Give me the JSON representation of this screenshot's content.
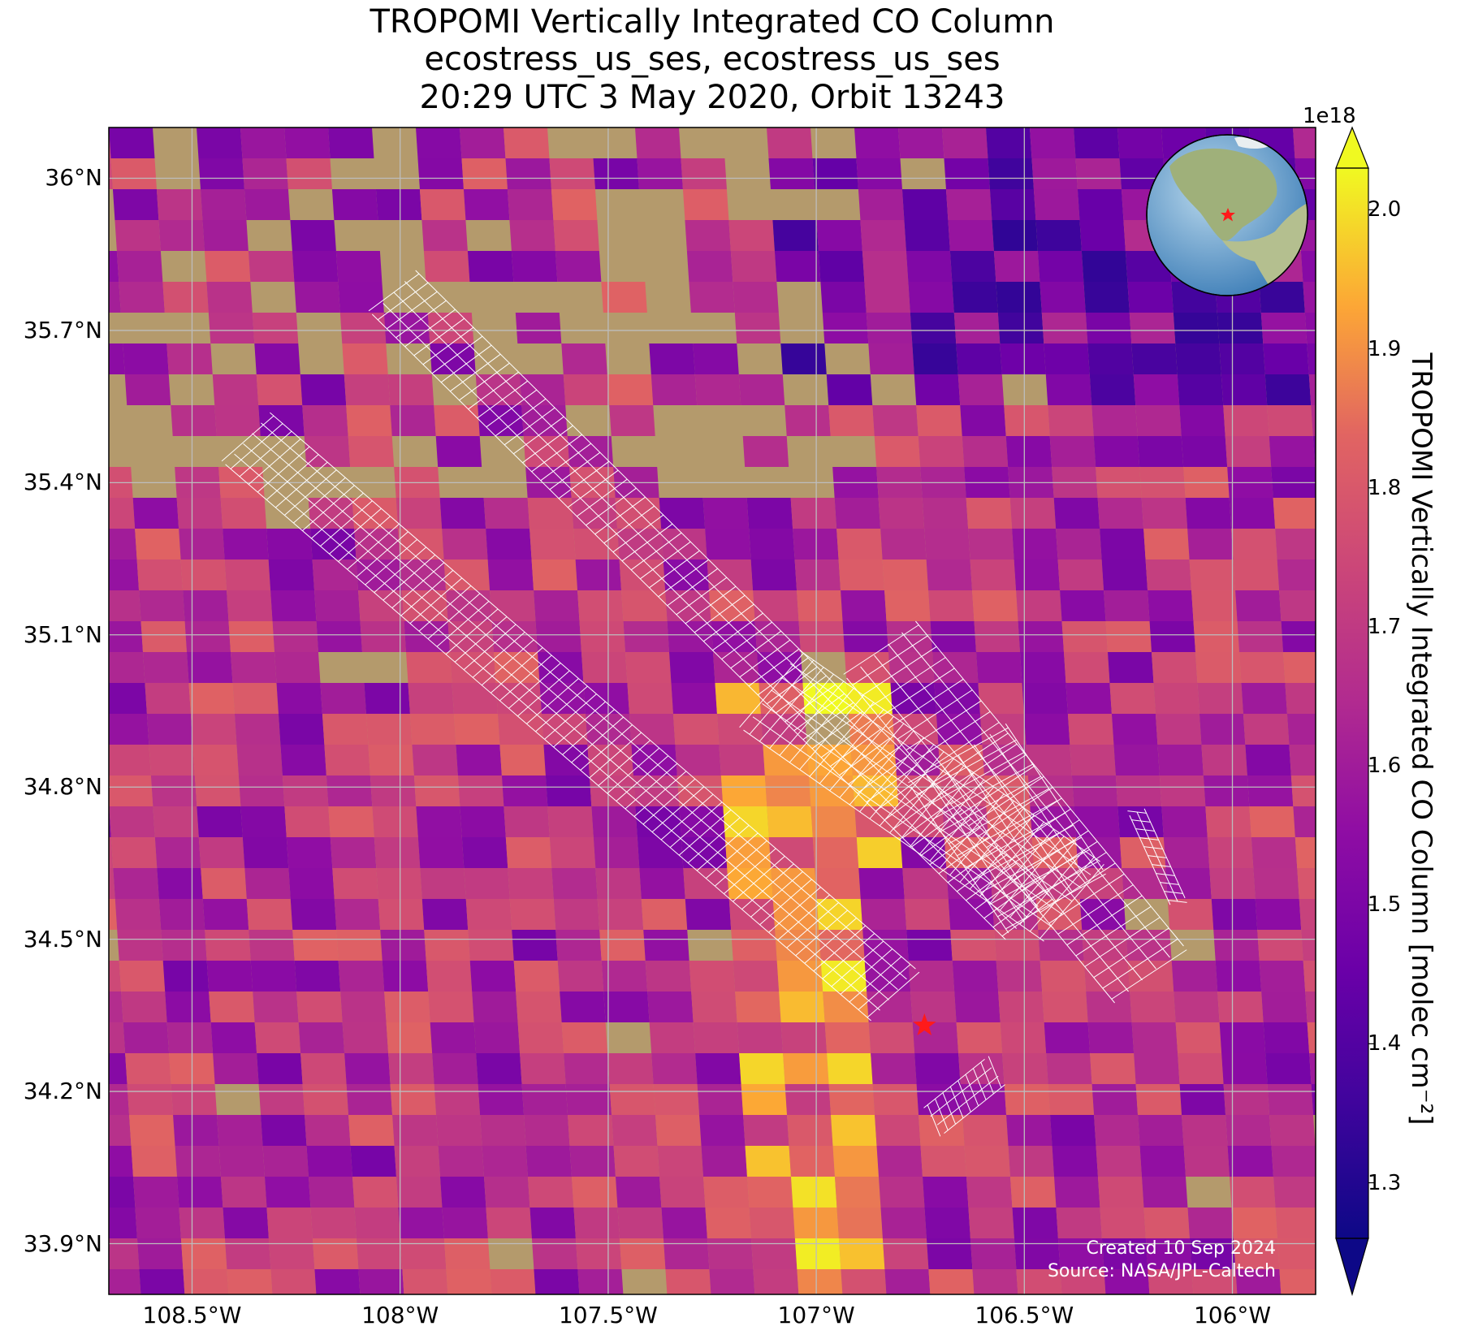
{
  "title": {
    "line1": "TROPOMI Vertically Integrated CO Column",
    "line2": "ecostress_us_ses, ecostress_us_ses",
    "line3": "20:29 UTC 3 May 2020, Orbit 13243"
  },
  "axes": {
    "lat_ticks": [
      "36°N",
      "35.7°N",
      "35.4°N",
      "35.1°N",
      "34.8°N",
      "34.5°N",
      "34.2°N",
      "33.9°N"
    ],
    "lat_values": [
      36.0,
      35.7,
      35.4,
      35.1,
      34.8,
      34.5,
      34.2,
      33.9
    ],
    "lon_ticks": [
      "108.5°W",
      "108°W",
      "107.5°W",
      "107°W",
      "106.5°W",
      "106°W"
    ],
    "lon_values": [
      -108.5,
      -108.0,
      -107.5,
      -107.0,
      -106.5,
      -106.0
    ],
    "lon_range": [
      -108.7,
      -105.8
    ],
    "lat_range": [
      33.8,
      36.1
    ],
    "grid": true
  },
  "colorbar": {
    "exponent_label": "1e18",
    "ticks": [
      "1.3",
      "1.4",
      "1.5",
      "1.6",
      "1.7",
      "1.8",
      "1.9",
      "2.0"
    ],
    "tick_values": [
      1.3,
      1.4,
      1.5,
      1.6,
      1.7,
      1.8,
      1.9,
      2.0
    ],
    "range": [
      1.26,
      2.03
    ],
    "extend": "both",
    "colormap": "plasma",
    "label": "TROPOMI Vertically Integrated CO Column [molec cm⁻²]"
  },
  "site_marker": {
    "lon": -106.74,
    "lat": 34.33,
    "color": "#ff1a1a",
    "shape": "star"
  },
  "globe_inset": {
    "site_marker_color": "#ff1a1a"
  },
  "credits": {
    "created": "Created 10 Sep 2024",
    "source": "Source: NASA/JPL-Caltech"
  },
  "colors": {
    "map_background": "#b49a6c",
    "swath_grid": "#ffffff",
    "gridline": "#bdbdbd"
  }
}
